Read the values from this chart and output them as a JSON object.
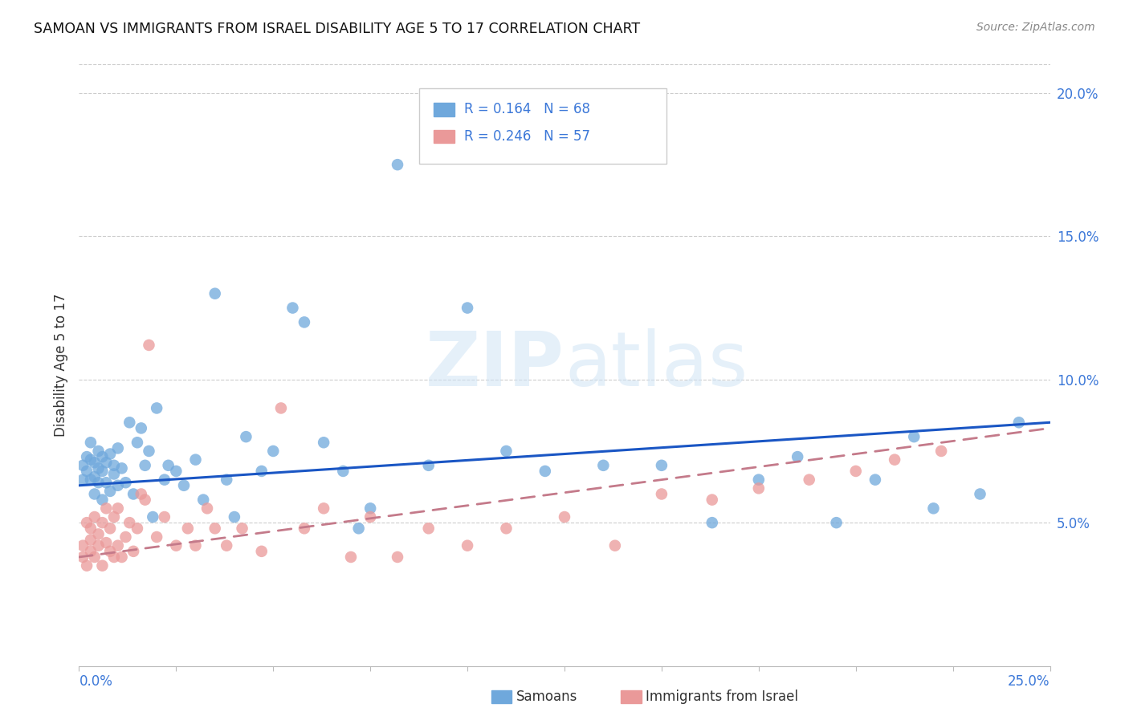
{
  "title": "SAMOAN VS IMMIGRANTS FROM ISRAEL DISABILITY AGE 5 TO 17 CORRELATION CHART",
  "source": "Source: ZipAtlas.com",
  "ylabel": "Disability Age 5 to 17",
  "xmin": 0.0,
  "xmax": 0.25,
  "ymin": 0.0,
  "ymax": 0.21,
  "yticks": [
    0.05,
    0.1,
    0.15,
    0.2
  ],
  "ytick_labels": [
    "5.0%",
    "10.0%",
    "15.0%",
    "20.0%"
  ],
  "samoans_color": "#6fa8dc",
  "israel_color": "#ea9999",
  "trend_samoan_color": "#1a56c4",
  "trend_israel_color": "#c47a8a",
  "watermark_color": "#d0e4f5",
  "samoans_x": [
    0.001,
    0.001,
    0.002,
    0.002,
    0.003,
    0.003,
    0.003,
    0.004,
    0.004,
    0.004,
    0.005,
    0.005,
    0.005,
    0.006,
    0.006,
    0.006,
    0.007,
    0.007,
    0.008,
    0.008,
    0.009,
    0.009,
    0.01,
    0.01,
    0.011,
    0.012,
    0.013,
    0.014,
    0.015,
    0.016,
    0.017,
    0.018,
    0.019,
    0.02,
    0.022,
    0.023,
    0.025,
    0.027,
    0.03,
    0.032,
    0.035,
    0.038,
    0.04,
    0.043,
    0.047,
    0.05,
    0.055,
    0.058,
    0.063,
    0.068,
    0.072,
    0.075,
    0.082,
    0.09,
    0.1,
    0.11,
    0.12,
    0.135,
    0.15,
    0.163,
    0.175,
    0.185,
    0.195,
    0.205,
    0.215,
    0.22,
    0.232,
    0.242
  ],
  "samoans_y": [
    0.07,
    0.065,
    0.073,
    0.068,
    0.072,
    0.065,
    0.078,
    0.066,
    0.071,
    0.06,
    0.075,
    0.069,
    0.064,
    0.073,
    0.058,
    0.068,
    0.071,
    0.064,
    0.074,
    0.061,
    0.07,
    0.067,
    0.063,
    0.076,
    0.069,
    0.064,
    0.085,
    0.06,
    0.078,
    0.083,
    0.07,
    0.075,
    0.052,
    0.09,
    0.065,
    0.07,
    0.068,
    0.063,
    0.072,
    0.058,
    0.13,
    0.065,
    0.052,
    0.08,
    0.068,
    0.075,
    0.125,
    0.12,
    0.078,
    0.068,
    0.048,
    0.055,
    0.175,
    0.07,
    0.125,
    0.075,
    0.068,
    0.07,
    0.07,
    0.05,
    0.065,
    0.073,
    0.05,
    0.065,
    0.08,
    0.055,
    0.06,
    0.085
  ],
  "israel_x": [
    0.001,
    0.001,
    0.002,
    0.002,
    0.003,
    0.003,
    0.003,
    0.004,
    0.004,
    0.005,
    0.005,
    0.006,
    0.006,
    0.007,
    0.007,
    0.008,
    0.008,
    0.009,
    0.009,
    0.01,
    0.01,
    0.011,
    0.012,
    0.013,
    0.014,
    0.015,
    0.016,
    0.017,
    0.018,
    0.02,
    0.022,
    0.025,
    0.028,
    0.03,
    0.033,
    0.035,
    0.038,
    0.042,
    0.047,
    0.052,
    0.058,
    0.063,
    0.07,
    0.075,
    0.082,
    0.09,
    0.1,
    0.11,
    0.125,
    0.138,
    0.15,
    0.163,
    0.175,
    0.188,
    0.2,
    0.21,
    0.222
  ],
  "israel_y": [
    0.042,
    0.038,
    0.05,
    0.035,
    0.048,
    0.04,
    0.044,
    0.038,
    0.052,
    0.042,
    0.046,
    0.035,
    0.05,
    0.043,
    0.055,
    0.04,
    0.048,
    0.038,
    0.052,
    0.042,
    0.055,
    0.038,
    0.045,
    0.05,
    0.04,
    0.048,
    0.06,
    0.058,
    0.112,
    0.045,
    0.052,
    0.042,
    0.048,
    0.042,
    0.055,
    0.048,
    0.042,
    0.048,
    0.04,
    0.09,
    0.048,
    0.055,
    0.038,
    0.052,
    0.038,
    0.048,
    0.042,
    0.048,
    0.052,
    0.042,
    0.06,
    0.058,
    0.062,
    0.065,
    0.068,
    0.072,
    0.075
  ],
  "sam_trend_x0": 0.0,
  "sam_trend_y0": 0.063,
  "sam_trend_x1": 0.25,
  "sam_trend_y1": 0.085,
  "isr_trend_x0": 0.0,
  "isr_trend_y0": 0.038,
  "isr_trend_x1": 0.25,
  "isr_trend_y1": 0.083
}
